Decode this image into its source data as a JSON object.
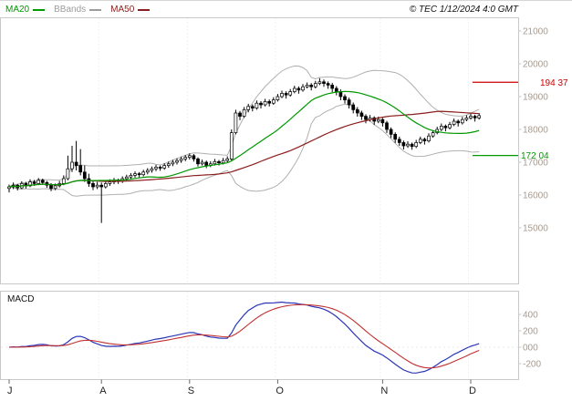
{
  "header": {
    "legend": [
      {
        "label": "MA20",
        "color": "#009900"
      },
      {
        "label": "BBands",
        "color": "#9c9c9c"
      },
      {
        "label": "MA50",
        "color": "#8b1e1e"
      }
    ],
    "copyright": "© TEC 1/12/2024 4:0 GMT"
  },
  "price_axis": {
    "tick_labels": [
      "21000",
      "20000",
      "19000",
      "18000",
      "17000",
      "16000",
      "15000"
    ],
    "tick_values": [
      21000,
      20000,
      19000,
      18000,
      17000,
      16000,
      15000
    ],
    "levels": [
      {
        "label": "194 37",
        "value": 19437,
        "color": "#cc0000"
      },
      {
        "label": "172 04",
        "value": 17204,
        "color": "#009900"
      }
    ]
  },
  "macd_panel": {
    "label": "MACD",
    "tick_labels": [
      "400",
      "200",
      "000",
      "-200"
    ],
    "tick_values": [
      400,
      200,
      0,
      -200
    ],
    "line_color": "#2a35b8",
    "signal_color": "#c03030"
  },
  "x_axis": {
    "month_labels": [
      "J",
      "A",
      "S",
      "O",
      "N",
      "D"
    ],
    "month_start_days": [
      0,
      22,
      43,
      64,
      89,
      110
    ]
  },
  "theme": {
    "axis_label_color": "#a79a8f",
    "month_label_color": "#222222",
    "panel_border_color": "#c9c9c9",
    "grid_color": "#e3e3e3"
  },
  "chart_data": {
    "type": "candlestick",
    "title": "",
    "x_months": [
      "J",
      "A",
      "S",
      "O",
      "N",
      "D"
    ],
    "month_start_days": [
      0,
      22,
      43,
      64,
      89,
      110
    ],
    "price_range": [
      15000,
      21000
    ],
    "macd_range": [
      -200,
      400
    ],
    "levels": [
      {
        "value": 19437,
        "label": "194 37"
      },
      {
        "value": 17204,
        "label": "172 04"
      }
    ],
    "indicators": {
      "ma_fast": 20,
      "ma_slow": 50,
      "bbands_period": 20,
      "bbands_dev": 2,
      "macd": [
        12,
        26,
        9
      ]
    },
    "colors": {
      "candle": "#000000",
      "ma20": "#009900",
      "ma50": "#8b1e1e",
      "bbands": "#b0b0b0"
    },
    "candles": [
      [
        16200,
        16320,
        16080,
        16250
      ],
      [
        16250,
        16380,
        16180,
        16300
      ],
      [
        16300,
        16340,
        16140,
        16220
      ],
      [
        16220,
        16420,
        16180,
        16350
      ],
      [
        16350,
        16400,
        16200,
        16280
      ],
      [
        16280,
        16480,
        16240,
        16400
      ],
      [
        16400,
        16460,
        16280,
        16350
      ],
      [
        16350,
        16520,
        16300,
        16450
      ],
      [
        16450,
        16500,
        16320,
        16380
      ],
      [
        16380,
        16430,
        16220,
        16300
      ],
      [
        16300,
        16360,
        16120,
        16200
      ],
      [
        16200,
        16350,
        16150,
        16280
      ],
      [
        16280,
        16430,
        16230,
        16350
      ],
      [
        16350,
        16600,
        16300,
        16500
      ],
      [
        16500,
        17200,
        16450,
        16800
      ],
      [
        16800,
        17500,
        16700,
        17000
      ],
      [
        17000,
        17650,
        16750,
        16900
      ],
      [
        16900,
        17400,
        16600,
        16700
      ],
      [
        16700,
        16900,
        16400,
        16500
      ],
      [
        16500,
        16650,
        16250,
        16350
      ],
      [
        16350,
        16450,
        16150,
        16250
      ],
      [
        16250,
        16400,
        16180,
        16300
      ],
      [
        16300,
        16380,
        15150,
        16250
      ],
      [
        16250,
        16450,
        16200,
        16350
      ],
      [
        16350,
        16480,
        16280,
        16400
      ],
      [
        16400,
        16520,
        16330,
        16450
      ],
      [
        16450,
        16500,
        16340,
        16420
      ],
      [
        16420,
        16570,
        16370,
        16500
      ],
      [
        16500,
        16620,
        16430,
        16550
      ],
      [
        16550,
        16670,
        16480,
        16600
      ],
      [
        16600,
        16720,
        16530,
        16650
      ],
      [
        16650,
        16700,
        16540,
        16620
      ],
      [
        16620,
        16770,
        16570,
        16700
      ],
      [
        16700,
        16820,
        16630,
        16750
      ],
      [
        16750,
        16870,
        16680,
        16800
      ],
      [
        16800,
        16920,
        16730,
        16850
      ],
      [
        16850,
        16900,
        16740,
        16820
      ],
      [
        16820,
        16970,
        16770,
        16900
      ],
      [
        16900,
        17020,
        16830,
        16950
      ],
      [
        16950,
        17070,
        16880,
        17000
      ],
      [
        17000,
        17120,
        16930,
        17050
      ],
      [
        17050,
        17170,
        16980,
        17100
      ],
      [
        17100,
        17220,
        17030,
        17150
      ],
      [
        17150,
        17270,
        17080,
        17200
      ],
      [
        17200,
        17250,
        17020,
        17100
      ],
      [
        17100,
        17150,
        16870,
        16950
      ],
      [
        16950,
        17080,
        16900,
        17000
      ],
      [
        17000,
        17050,
        16820,
        16900
      ],
      [
        16900,
        17030,
        16850,
        16950
      ],
      [
        16950,
        17100,
        16900,
        17020
      ],
      [
        17020,
        17070,
        16900,
        16980
      ],
      [
        16980,
        17130,
        16930,
        17050
      ],
      [
        17050,
        17180,
        17000,
        17100
      ],
      [
        17100,
        18000,
        17050,
        17900
      ],
      [
        17900,
        18600,
        17850,
        18500
      ],
      [
        18500,
        18560,
        18280,
        18400
      ],
      [
        18400,
        18680,
        18350,
        18600
      ],
      [
        18600,
        18780,
        18520,
        18700
      ],
      [
        18700,
        18760,
        18550,
        18650
      ],
      [
        18650,
        18880,
        18600,
        18800
      ],
      [
        18800,
        18860,
        18640,
        18750
      ],
      [
        18750,
        18930,
        18700,
        18850
      ],
      [
        18850,
        18910,
        18700,
        18800
      ],
      [
        18800,
        18980,
        18750,
        18900
      ],
      [
        18900,
        19080,
        18850,
        19000
      ],
      [
        19000,
        19180,
        18950,
        19100
      ],
      [
        19100,
        19160,
        18940,
        19050
      ],
      [
        19050,
        19230,
        19000,
        19150
      ],
      [
        19150,
        19330,
        19100,
        19250
      ],
      [
        19250,
        19310,
        19090,
        19200
      ],
      [
        19200,
        19380,
        19150,
        19300
      ],
      [
        19300,
        19430,
        19250,
        19350
      ],
      [
        19350,
        19410,
        19190,
        19300
      ],
      [
        19300,
        19480,
        19250,
        19400
      ],
      [
        19400,
        19560,
        19350,
        19450
      ],
      [
        19450,
        19520,
        19300,
        19400
      ],
      [
        19400,
        19460,
        19240,
        19350
      ],
      [
        19350,
        19420,
        19140,
        19250
      ],
      [
        19250,
        19320,
        19040,
        19150
      ],
      [
        19150,
        19220,
        18890,
        19000
      ],
      [
        19000,
        19070,
        18790,
        18900
      ],
      [
        18900,
        18970,
        18640,
        18750
      ],
      [
        18750,
        18820,
        18490,
        18600
      ],
      [
        18600,
        18680,
        18390,
        18500
      ],
      [
        18500,
        18570,
        18290,
        18400
      ],
      [
        18400,
        18460,
        18190,
        18300
      ],
      [
        18300,
        18440,
        18240,
        18350
      ],
      [
        18350,
        18400,
        18140,
        18250
      ],
      [
        18250,
        18390,
        18190,
        18300
      ],
      [
        18300,
        18350,
        18090,
        18200
      ],
      [
        18200,
        18260,
        17890,
        18000
      ],
      [
        18000,
        18060,
        17740,
        17850
      ],
      [
        17850,
        17910,
        17590,
        17700
      ],
      [
        17700,
        17780,
        17500,
        17600
      ],
      [
        17600,
        17660,
        17390,
        17500
      ],
      [
        17500,
        17640,
        17440,
        17550
      ],
      [
        17550,
        17600,
        17380,
        17480
      ],
      [
        17480,
        17680,
        17430,
        17600
      ],
      [
        17600,
        17780,
        17550,
        17700
      ],
      [
        17700,
        17750,
        17540,
        17650
      ],
      [
        17650,
        17880,
        17600,
        17800
      ],
      [
        17800,
        17980,
        17750,
        17900
      ],
      [
        17900,
        18080,
        17850,
        18000
      ],
      [
        18000,
        18180,
        17950,
        18100
      ],
      [
        18100,
        18150,
        17940,
        18050
      ],
      [
        18050,
        18230,
        18000,
        18150
      ],
      [
        18150,
        18330,
        18100,
        18250
      ],
      [
        18250,
        18300,
        18090,
        18200
      ],
      [
        18200,
        18380,
        18150,
        18300
      ],
      [
        18300,
        18430,
        18250,
        18350
      ],
      [
        18350,
        18480,
        18300,
        18400
      ],
      [
        18400,
        18450,
        18240,
        18350
      ],
      [
        18350,
        18500,
        18300,
        18420
      ]
    ]
  }
}
